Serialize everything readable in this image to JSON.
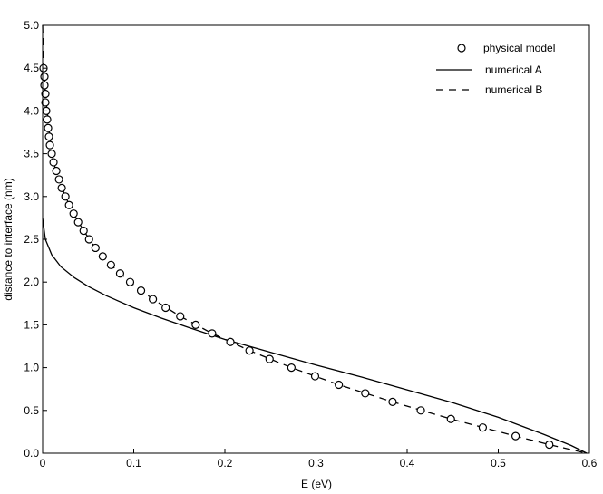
{
  "chart_data": {
    "type": "line",
    "xlabel": "E (eV)",
    "ylabel": "distance to interface (nm)",
    "xlim": [
      0,
      0.6
    ],
    "ylim": [
      0,
      5.0
    ],
    "x_ticks": [
      "0",
      "0.1",
      "0.2",
      "0.3",
      "0.4",
      "0.5",
      "0.6"
    ],
    "y_ticks": [
      "0.0",
      "0.5",
      "1.0",
      "1.5",
      "2.0",
      "2.5",
      "3.0",
      "3.5",
      "4.0",
      "4.5",
      "5.0"
    ],
    "grid": false,
    "legend_position": "top-right",
    "series": [
      {
        "name": "physical model",
        "style": "markers-open-circle",
        "x": [
          0.556,
          0.519,
          0.483,
          0.448,
          0.415,
          0.384,
          0.354,
          0.325,
          0.299,
          0.273,
          0.249,
          0.227,
          0.206,
          0.186,
          0.168,
          0.151,
          0.135,
          0.121,
          0.108,
          0.096,
          0.085,
          0.075,
          0.066,
          0.058,
          0.051,
          0.045,
          0.039,
          0.034,
          0.029,
          0.025,
          0.021,
          0.018,
          0.015,
          0.012,
          0.01,
          0.008,
          0.007,
          0.006,
          0.005,
          0.004,
          0.003,
          0.003,
          0.002,
          0.002,
          0.001
        ],
        "y": [
          0.1,
          0.2,
          0.3,
          0.4,
          0.5,
          0.6,
          0.7,
          0.8,
          0.9,
          1.0,
          1.1,
          1.2,
          1.3,
          1.4,
          1.5,
          1.6,
          1.7,
          1.8,
          1.9,
          2.0,
          2.1,
          2.2,
          2.3,
          2.4,
          2.5,
          2.6,
          2.7,
          2.8,
          2.9,
          3.0,
          3.1,
          3.2,
          3.3,
          3.4,
          3.5,
          3.6,
          3.7,
          3.8,
          3.9,
          4.0,
          4.1,
          4.2,
          4.3,
          4.4,
          4.5
        ]
      },
      {
        "name": "numerical A",
        "style": "solid",
        "x": [
          0.0,
          0.003,
          0.01,
          0.02,
          0.035,
          0.05,
          0.07,
          0.1,
          0.13,
          0.16,
          0.2,
          0.25,
          0.3,
          0.35,
          0.4,
          0.45,
          0.5,
          0.55,
          0.58,
          0.597
        ],
        "y": [
          2.75,
          2.5,
          2.32,
          2.18,
          2.05,
          1.95,
          1.84,
          1.7,
          1.58,
          1.47,
          1.33,
          1.18,
          1.03,
          0.89,
          0.74,
          0.59,
          0.42,
          0.22,
          0.09,
          0.0
        ]
      },
      {
        "name": "numerical B",
        "style": "dashed",
        "x": [
          0.0,
          0.001,
          0.002,
          0.003,
          0.005,
          0.008,
          0.012,
          0.018,
          0.025,
          0.034,
          0.045,
          0.058,
          0.075,
          0.096,
          0.121,
          0.151,
          0.186,
          0.227,
          0.273,
          0.325,
          0.384,
          0.448,
          0.519,
          0.556,
          0.597
        ],
        "y": [
          5.0,
          4.6,
          4.4,
          4.2,
          4.0,
          3.7,
          3.4,
          3.2,
          3.0,
          2.8,
          2.6,
          2.4,
          2.2,
          2.0,
          1.8,
          1.6,
          1.4,
          1.2,
          1.0,
          0.8,
          0.6,
          0.4,
          0.2,
          0.1,
          0.0
        ]
      }
    ]
  }
}
